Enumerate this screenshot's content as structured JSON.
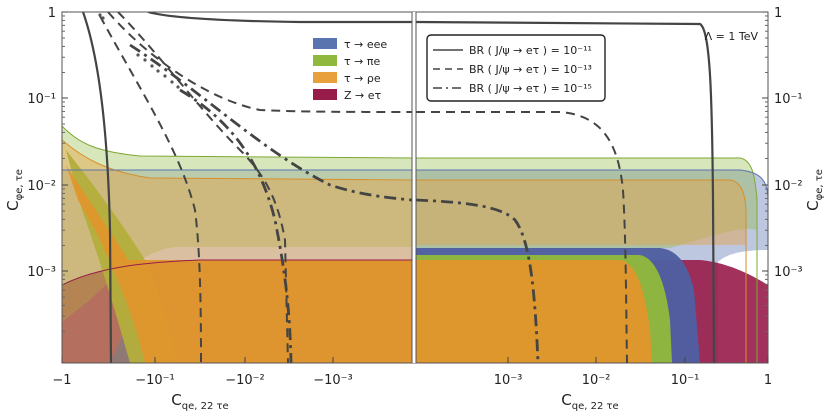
{
  "chart_data": {
    "type": "area",
    "annotation": "Λ = 1 TeV",
    "xlabel": "C",
    "xlabel_sub": "qe, 22 τe",
    "ylabel": "C",
    "ylabel_sub": "φe, τe",
    "x_ticks_left": [
      "−1",
      "−10⁻¹",
      "−10⁻²",
      "−10⁻³"
    ],
    "x_ticks_right": [
      "10⁻³",
      "10⁻²",
      "10⁻¹",
      "1"
    ],
    "y_ticks": [
      "1",
      "10⁻¹",
      "10⁻²",
      "10⁻³"
    ],
    "ylim": [
      0.0001,
      1
    ],
    "x_scale": "symmetric-log",
    "y_scale": "log",
    "legend_fill": [
      {
        "label": "τ → eee",
        "color": "#5a74b0"
      },
      {
        "label": "τ → πe",
        "color": "#8fb83c"
      },
      {
        "label": "τ → ρe",
        "color": "#e8a03c"
      },
      {
        "label": "Z → eτ",
        "color": "#981c4a"
      }
    ],
    "legend_lines": [
      {
        "label": "BR ( J/ψ → eτ ) = 10⁻¹¹",
        "dash": "solid"
      },
      {
        "label": "BR ( J/ψ → eτ ) = 10⁻¹³",
        "dash": "dashed"
      },
      {
        "label": "BR ( J/ψ → eτ ) = 10⁻¹⁵",
        "dash": "dashdot"
      }
    ],
    "series": [
      {
        "name": "τ → eee",
        "y_plateau": 0.017,
        "y_lower": 0.0021,
        "x_left_edge": -0.13,
        "x_right_edge": 0.2
      },
      {
        "name": "τ → πe",
        "y_plateau": 0.022,
        "y_lower": 0.0021,
        "x_left_edge": -0.07,
        "x_right_edge": 0.05
      },
      {
        "name": "τ → ρe",
        "y_plateau": 0.013,
        "y_lower": 0.0016,
        "x_left_edge": -0.04,
        "x_right_edge": 0.03
      },
      {
        "name": "Z → eτ",
        "y_plateau": 0.0016,
        "x_right_edge": 0.28
      }
    ]
  }
}
